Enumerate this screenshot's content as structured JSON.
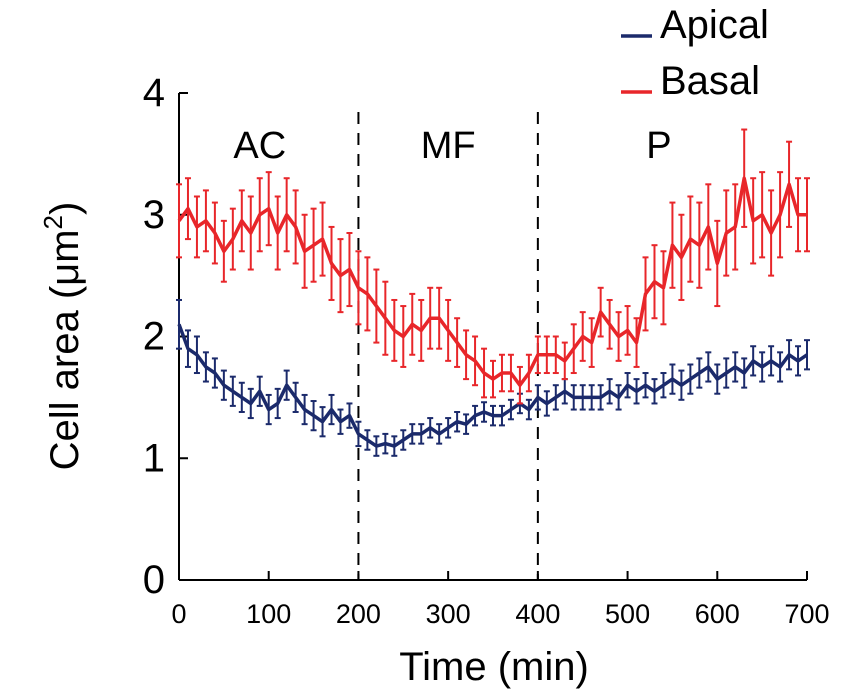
{
  "chart_data": {
    "type": "line",
    "xlabel": "Time (min)",
    "ylabel_main": "Cell area (μm",
    "ylabel_sup": "2",
    "ylabel_close": ")",
    "xlim": [
      0,
      700
    ],
    "ylim": [
      0,
      4
    ],
    "xticks": [
      0,
      100,
      200,
      300,
      400,
      500,
      600,
      700
    ],
    "yticks": [
      0,
      1,
      2,
      3,
      4
    ],
    "grid": false,
    "legend_position": "top-right",
    "dividers": [
      200,
      400
    ],
    "phases": [
      {
        "label": "AC",
        "x": 90
      },
      {
        "label": "MF",
        "x": 300
      },
      {
        "label": "P",
        "x": 535
      }
    ],
    "series": [
      {
        "name": "Apical",
        "color": "#1b2a6b",
        "x": [
          0,
          10,
          20,
          30,
          40,
          50,
          60,
          70,
          80,
          90,
          100,
          110,
          120,
          130,
          140,
          150,
          160,
          170,
          180,
          190,
          200,
          210,
          220,
          230,
          240,
          250,
          260,
          270,
          280,
          290,
          300,
          310,
          320,
          330,
          340,
          350,
          360,
          370,
          380,
          390,
          400,
          410,
          420,
          430,
          440,
          450,
          460,
          470,
          480,
          490,
          500,
          510,
          520,
          530,
          540,
          550,
          560,
          570,
          580,
          590,
          600,
          610,
          620,
          630,
          640,
          650,
          660,
          670,
          680,
          690,
          700
        ],
        "y": [
          2.1,
          1.9,
          1.85,
          1.75,
          1.7,
          1.6,
          1.55,
          1.5,
          1.45,
          1.55,
          1.4,
          1.45,
          1.6,
          1.5,
          1.4,
          1.35,
          1.3,
          1.4,
          1.3,
          1.35,
          1.2,
          1.15,
          1.1,
          1.12,
          1.1,
          1.15,
          1.2,
          1.2,
          1.25,
          1.2,
          1.25,
          1.3,
          1.28,
          1.35,
          1.38,
          1.35,
          1.35,
          1.4,
          1.45,
          1.4,
          1.5,
          1.45,
          1.5,
          1.55,
          1.5,
          1.5,
          1.5,
          1.5,
          1.55,
          1.5,
          1.6,
          1.55,
          1.6,
          1.55,
          1.6,
          1.65,
          1.6,
          1.65,
          1.7,
          1.75,
          1.65,
          1.7,
          1.75,
          1.7,
          1.8,
          1.75,
          1.8,
          1.75,
          1.85,
          1.8,
          1.85
        ],
        "err": [
          0.2,
          0.15,
          0.15,
          0.12,
          0.12,
          0.12,
          0.12,
          0.12,
          0.12,
          0.12,
          0.12,
          0.12,
          0.12,
          0.12,
          0.12,
          0.12,
          0.12,
          0.12,
          0.1,
          0.1,
          0.1,
          0.08,
          0.08,
          0.08,
          0.08,
          0.08,
          0.08,
          0.08,
          0.08,
          0.08,
          0.08,
          0.08,
          0.08,
          0.08,
          0.08,
          0.08,
          0.08,
          0.08,
          0.08,
          0.08,
          0.1,
          0.1,
          0.1,
          0.1,
          0.1,
          0.1,
          0.1,
          0.1,
          0.1,
          0.1,
          0.1,
          0.1,
          0.1,
          0.1,
          0.1,
          0.12,
          0.12,
          0.12,
          0.12,
          0.12,
          0.12,
          0.12,
          0.12,
          0.12,
          0.12,
          0.12,
          0.12,
          0.12,
          0.12,
          0.12,
          0.12
        ]
      },
      {
        "name": "Basal",
        "color": "#e8262a",
        "x": [
          0,
          10,
          20,
          30,
          40,
          50,
          60,
          70,
          80,
          90,
          100,
          110,
          120,
          130,
          140,
          150,
          160,
          170,
          180,
          190,
          200,
          210,
          220,
          230,
          240,
          250,
          260,
          270,
          280,
          290,
          300,
          310,
          320,
          330,
          340,
          350,
          360,
          370,
          380,
          390,
          400,
          410,
          420,
          430,
          440,
          450,
          460,
          470,
          480,
          490,
          500,
          510,
          520,
          530,
          540,
          550,
          560,
          570,
          580,
          590,
          600,
          610,
          620,
          630,
          640,
          650,
          660,
          670,
          680,
          690,
          700
        ],
        "y": [
          2.95,
          3.05,
          2.9,
          2.95,
          2.85,
          2.7,
          2.8,
          2.95,
          2.85,
          3.0,
          3.05,
          2.85,
          3.0,
          2.9,
          2.7,
          2.75,
          2.8,
          2.6,
          2.5,
          2.55,
          2.4,
          2.35,
          2.25,
          2.15,
          2.05,
          2.0,
          2.1,
          2.05,
          2.15,
          2.15,
          2.05,
          1.95,
          1.85,
          1.8,
          1.7,
          1.65,
          1.7,
          1.7,
          1.6,
          1.7,
          1.85,
          1.85,
          1.85,
          1.8,
          1.9,
          2.0,
          1.95,
          2.2,
          2.1,
          2.0,
          2.05,
          1.95,
          2.35,
          2.45,
          2.4,
          2.75,
          2.65,
          2.8,
          2.75,
          2.9,
          2.6,
          2.85,
          2.9,
          3.3,
          2.95,
          3.0,
          2.85,
          3.0,
          3.25,
          3.0,
          3.0
        ],
        "err": [
          0.3,
          0.25,
          0.25,
          0.25,
          0.25,
          0.25,
          0.25,
          0.25,
          0.3,
          0.3,
          0.3,
          0.3,
          0.3,
          0.3,
          0.3,
          0.3,
          0.3,
          0.3,
          0.3,
          0.3,
          0.3,
          0.3,
          0.3,
          0.3,
          0.25,
          0.25,
          0.25,
          0.25,
          0.25,
          0.25,
          0.25,
          0.2,
          0.2,
          0.2,
          0.2,
          0.15,
          0.15,
          0.15,
          0.15,
          0.15,
          0.15,
          0.15,
          0.15,
          0.15,
          0.2,
          0.2,
          0.2,
          0.2,
          0.2,
          0.2,
          0.2,
          0.2,
          0.3,
          0.3,
          0.3,
          0.35,
          0.35,
          0.35,
          0.35,
          0.35,
          0.35,
          0.35,
          0.35,
          0.4,
          0.35,
          0.35,
          0.35,
          0.35,
          0.35,
          0.3,
          0.3
        ]
      }
    ]
  }
}
